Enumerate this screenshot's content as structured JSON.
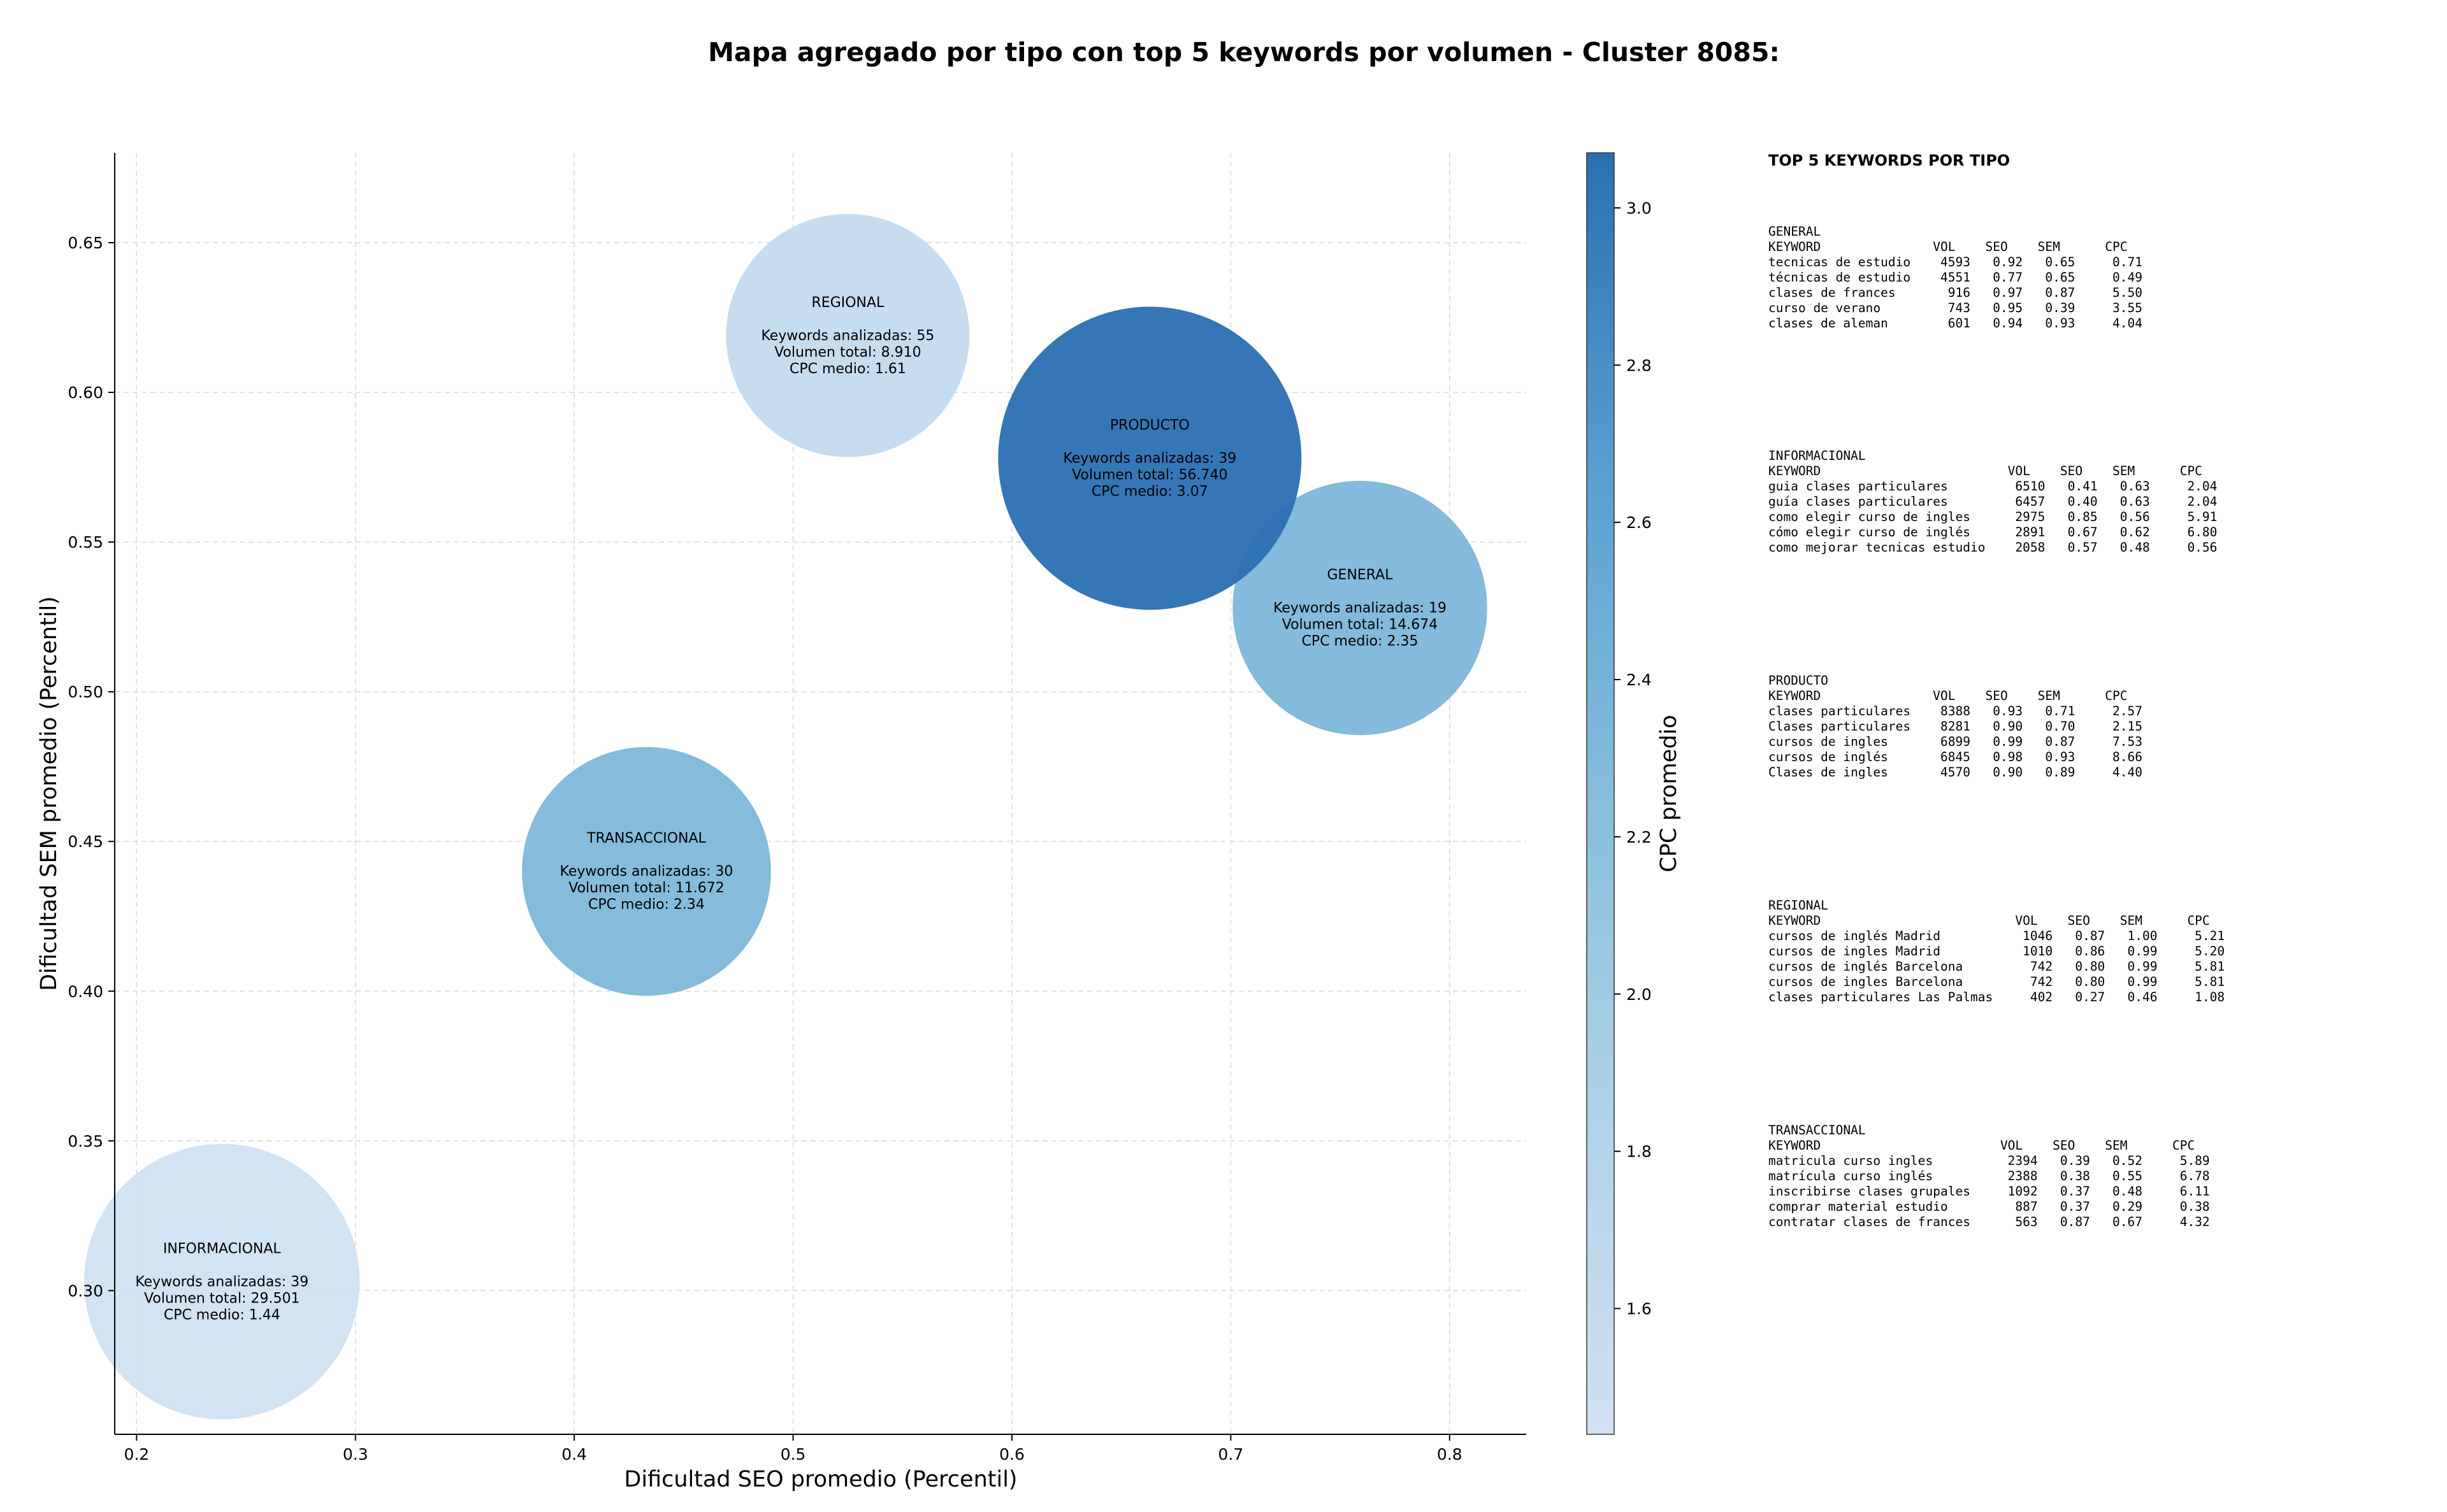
{
  "chart_data": {
    "type": "scatter",
    "title": "Mapa agregado por tipo con top 5 keywords por volumen - Cluster 8085:",
    "xlabel": "Dificultad SEO promedio (Percentil)",
    "ylabel": "Dificultad SEM promedio (Percentil)",
    "xlim": [
      0.19,
      0.835
    ],
    "ylim": [
      0.252,
      0.68
    ],
    "xticks": [
      "0.2",
      "0.3",
      "0.4",
      "0.5",
      "0.6",
      "0.7",
      "0.8"
    ],
    "yticks": [
      "0.30",
      "0.35",
      "0.40",
      "0.45",
      "0.50",
      "0.55",
      "0.60",
      "0.65"
    ],
    "grid": true,
    "colorbar": {
      "label": "CPC promedio",
      "range": [
        1.44,
        3.07
      ],
      "ticks": [
        "1.6",
        "1.8",
        "2.0",
        "2.2",
        "2.4",
        "2.6",
        "2.8",
        "3.0"
      ],
      "colormap": "Blues",
      "low_color": "#d0e1f2",
      "high_color": "#2a6fb2"
    },
    "points": [
      {
        "name": "REGIONAL",
        "x": 0.525,
        "y": 0.619,
        "keywords_line": "Keywords analizadas: 55",
        "volume_line": "Volumen total: 8.910",
        "cpc_line": "CPC medio: 1.61",
        "keywords": 55,
        "volume": 8910,
        "cpc": 1.61
      },
      {
        "name": "TRANSACCIONAL",
        "x": 0.433,
        "y": 0.44,
        "keywords_line": "Keywords analizadas: 30",
        "volume_line": "Volumen total: 11.672",
        "cpc_line": "CPC medio: 2.34",
        "keywords": 30,
        "volume": 11672,
        "cpc": 2.34
      },
      {
        "name": "INFORMACIONAL",
        "x": 0.239,
        "y": 0.303,
        "keywords_line": "Keywords analizadas: 39",
        "volume_line": "Volumen total: 29.501",
        "cpc_line": "CPC medio: 1.44",
        "keywords": 39,
        "volume": 29501,
        "cpc": 1.44
      },
      {
        "name": "GENERAL",
        "x": 0.759,
        "y": 0.528,
        "keywords_line": "Keywords analizadas: 19",
        "volume_line": "Volumen total: 14.674",
        "cpc_line": "CPC medio: 2.35",
        "keywords": 19,
        "volume": 14674,
        "cpc": 2.35
      },
      {
        "name": "PRODUCTO",
        "x": 0.663,
        "y": 0.578,
        "keywords_line": "Keywords analizadas: 39",
        "volume_line": "Volumen total: 56.740",
        "cpc_line": "CPC medio: 3.07",
        "keywords": 39,
        "volume": 56740,
        "cpc": 3.07
      }
    ]
  },
  "keywords_panel": {
    "title": "TOP 5 KEYWORDS POR TIPO",
    "groups": [
      {
        "name": "GENERAL",
        "lines": [
          "KEYWORD               VOL    SEO    SEM      CPC",
          "tecnicas de estudio    4593   0.92   0.65     0.71",
          "técnicas de estudio    4551   0.77   0.65     0.49",
          "clases de frances       916   0.97   0.87     5.50",
          "curso de verano         743   0.95   0.39     3.55",
          "clases de aleman        601   0.94   0.93     4.04"
        ]
      },
      {
        "name": "INFORMACIONAL",
        "lines": [
          "KEYWORD                         VOL    SEO    SEM      CPC",
          "guia clases particulares         6510   0.41   0.63     2.04",
          "guía clases particulares         6457   0.40   0.63     2.04",
          "como elegir curso de ingles      2975   0.85   0.56     5.91",
          "cómo elegir curso de inglés      2891   0.67   0.62     6.80",
          "como mejorar tecnicas estudio    2058   0.57   0.48     0.56"
        ]
      },
      {
        "name": "PRODUCTO",
        "lines": [
          "KEYWORD               VOL    SEO    SEM      CPC",
          "clases particulares    8388   0.93   0.71     2.57",
          "Clases particulares    8281   0.90   0.70     2.15",
          "cursos de ingles       6899   0.99   0.87     7.53",
          "cursos de inglés       6845   0.98   0.93     8.66",
          "Clases de ingles       4570   0.90   0.89     4.40"
        ]
      },
      {
        "name": "REGIONAL",
        "lines": [
          "KEYWORD                          VOL    SEO    SEM      CPC",
          "cursos de inglés Madrid           1046   0.87   1.00     5.21",
          "cursos de ingles Madrid           1010   0.86   0.99     5.20",
          "cursos de inglés Barcelona         742   0.80   0.99     5.81",
          "cursos de ingles Barcelona         742   0.80   0.99     5.81",
          "clases particulares Las Palmas     402   0.27   0.46     1.08"
        ]
      },
      {
        "name": "TRANSACCIONAL",
        "lines": [
          "KEYWORD                        VOL    SEO    SEM      CPC",
          "matricula curso ingles          2394   0.39   0.52     5.89",
          "matrícula curso inglés          2388   0.38   0.55     6.78",
          "inscribirse clases grupales     1092   0.37   0.48     6.11",
          "comprar material estudio         887   0.37   0.29     0.38",
          "contratar clases de frances      563   0.87   0.67     4.32"
        ]
      }
    ]
  }
}
